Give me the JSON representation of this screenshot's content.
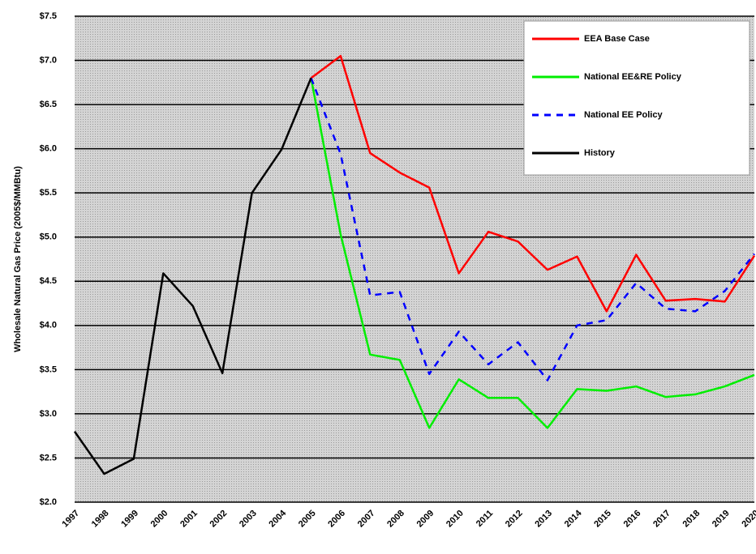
{
  "chart_data": {
    "type": "line",
    "y_label": "Wholesale Natural Gas Price (2005$/MMBtu)",
    "categories": [
      "1997",
      "1998",
      "1999",
      "2000",
      "2001",
      "2002",
      "2003",
      "2004",
      "2005",
      "2006",
      "2007",
      "2008",
      "2009",
      "2010",
      "2011",
      "2012",
      "2013",
      "2014",
      "2015",
      "2016",
      "2017",
      "2018",
      "2019",
      "2020"
    ],
    "series": [
      {
        "name": "EEA Base Case",
        "color": "#ff0000",
        "dashed": false,
        "values": [
          null,
          null,
          null,
          null,
          null,
          null,
          null,
          null,
          6.8,
          7.05,
          5.95,
          5.73,
          5.56,
          4.59,
          5.06,
          4.95,
          4.63,
          4.78,
          4.16,
          4.8,
          4.28,
          4.3,
          4.27,
          4.79
        ]
      },
      {
        "name": "National EE&RE Policy",
        "color": "#00ee00",
        "dashed": false,
        "values": [
          null,
          null,
          null,
          null,
          null,
          null,
          null,
          null,
          6.8,
          5.03,
          3.67,
          3.61,
          2.84,
          3.39,
          3.18,
          3.18,
          2.84,
          3.28,
          3.26,
          3.31,
          3.19,
          3.22,
          3.31,
          3.44
        ]
      },
      {
        "name": "National EE Policy",
        "color": "#0000ff",
        "dashed": true,
        "values": [
          null,
          null,
          null,
          null,
          null,
          null,
          null,
          null,
          6.8,
          5.94,
          4.34,
          4.38,
          3.45,
          3.93,
          3.56,
          3.81,
          3.38,
          4.0,
          4.06,
          4.48,
          4.19,
          4.16,
          4.39,
          4.81
        ]
      },
      {
        "name": "History",
        "color": "#000000",
        "dashed": false,
        "values": [
          2.8,
          2.32,
          2.49,
          4.59,
          4.22,
          3.46,
          5.5,
          5.99,
          6.8,
          null,
          null,
          null,
          null,
          null,
          null,
          null,
          null,
          null,
          null,
          null,
          null,
          null,
          null,
          null
        ]
      }
    ],
    "ylim": [
      2.0,
      7.5
    ],
    "yticks": [
      {
        "value": 2.0,
        "label": "$2.0"
      },
      {
        "value": 2.5,
        "label": "$2.5"
      },
      {
        "value": 3.0,
        "label": "$3.0"
      },
      {
        "value": 3.5,
        "label": "$3.5"
      },
      {
        "value": 4.0,
        "label": "$4.0"
      },
      {
        "value": 4.5,
        "label": "$4.5"
      },
      {
        "value": 5.0,
        "label": "$5.0"
      },
      {
        "value": 5.5,
        "label": "$5.5"
      },
      {
        "value": 6.0,
        "label": "$6.0"
      },
      {
        "value": 6.5,
        "label": "$6.5"
      },
      {
        "value": 7.0,
        "label": "$7.0"
      },
      {
        "value": 7.5,
        "label": "$7.5"
      }
    ],
    "grid": true,
    "legend": "top-right"
  }
}
